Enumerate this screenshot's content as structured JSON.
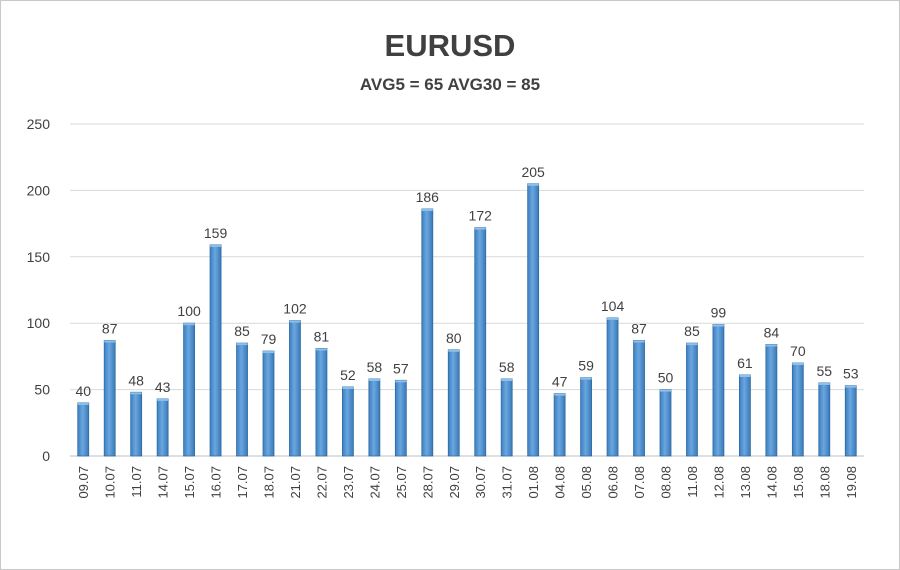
{
  "chart_data": {
    "type": "bar",
    "title": "EURUSD",
    "subtitle": "AVG5 = 65 AVG30 = 85",
    "categories": [
      "09.07",
      "10.07",
      "11.07",
      "14.07",
      "15.07",
      "16.07",
      "17.07",
      "18.07",
      "21.07",
      "22.07",
      "23.07",
      "24.07",
      "25.07",
      "28.07",
      "29.07",
      "30.07",
      "31.07",
      "01.08",
      "04.08",
      "05.08",
      "06.08",
      "07.08",
      "08.08",
      "11.08",
      "12.08",
      "13.08",
      "14.08",
      "15.08",
      "18.08",
      "19.08"
    ],
    "values": [
      40,
      87,
      48,
      43,
      100,
      159,
      85,
      79,
      102,
      81,
      52,
      58,
      57,
      186,
      80,
      172,
      58,
      205,
      47,
      59,
      104,
      87,
      50,
      85,
      99,
      61,
      84,
      70,
      55,
      53
    ],
    "ylim": [
      0,
      250
    ],
    "yticks": [
      0,
      50,
      100,
      150,
      200,
      250
    ],
    "grid": true,
    "data_labels": true,
    "bar_color": "#5b9bd5",
    "bar_edge_color": "#2e6da4"
  }
}
